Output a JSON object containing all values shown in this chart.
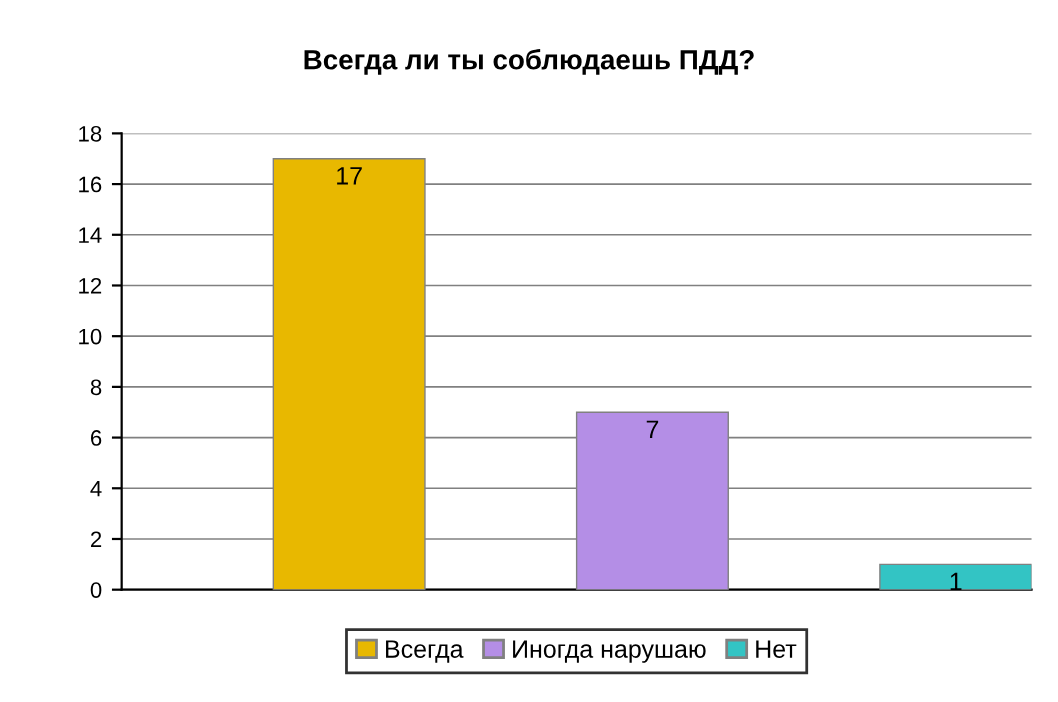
{
  "chart_data": {
    "type": "bar",
    "title": "Всегда ли ты соблюдаешь ПДД?",
    "categories": [
      null
    ],
    "series": [
      {
        "name": "Всегда",
        "color": "#e8b800",
        "values": [
          17
        ]
      },
      {
        "name": "Иногда нарушаю",
        "color": "#b48ee6",
        "values": [
          7
        ]
      },
      {
        "name": "Нет",
        "color": "#33c4c4",
        "values": [
          1
        ]
      }
    ],
    "ylim": [
      0,
      18
    ],
    "yticks": [
      0,
      2,
      4,
      6,
      8,
      10,
      12,
      14,
      16,
      18
    ],
    "grid": "y",
    "data_labels": true,
    "legend": "bottom"
  }
}
